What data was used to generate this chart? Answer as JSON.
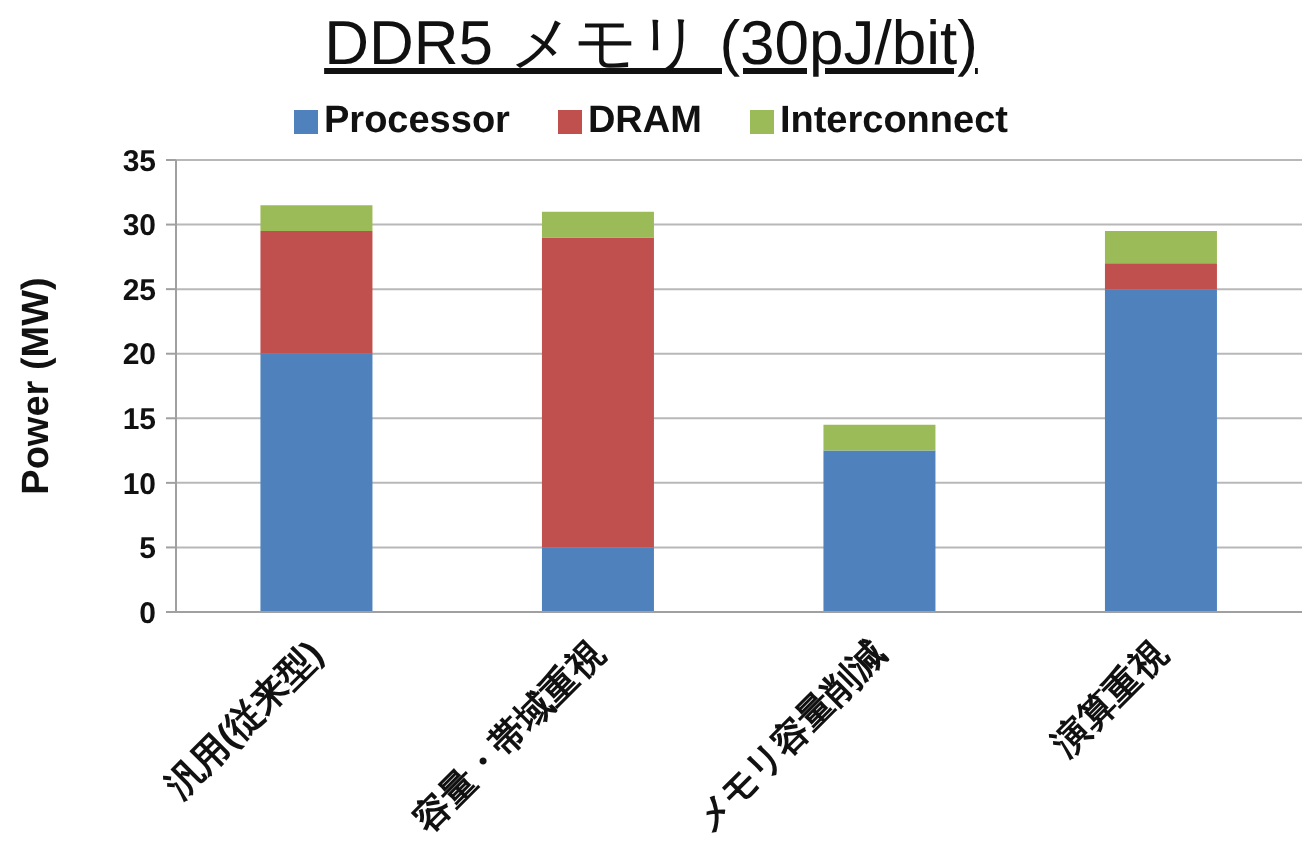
{
  "chart_data": {
    "type": "bar",
    "title": "DDR5 メモリ (30pJ/bit)",
    "ylabel": "Power (MW)",
    "categories": [
      "汎用(従来型)",
      "容量・帯域重視",
      "メモリ容量削減",
      "演算重視"
    ],
    "stacked": true,
    "series": [
      {
        "name": "Processor",
        "color": "#4f81bd",
        "values": [
          20,
          5,
          12.5,
          25
        ]
      },
      {
        "name": "DRAM",
        "color": "#c0504d",
        "values": [
          9.5,
          24,
          0,
          2
        ]
      },
      {
        "name": "Interconnect",
        "color": "#9bbb59",
        "values": [
          2,
          2,
          2,
          2.5
        ]
      }
    ],
    "ylim": [
      0,
      35
    ],
    "yticks": [
      0,
      5,
      10,
      15,
      20,
      25,
      30,
      35
    ],
    "grid": "y",
    "legend": "top"
  }
}
